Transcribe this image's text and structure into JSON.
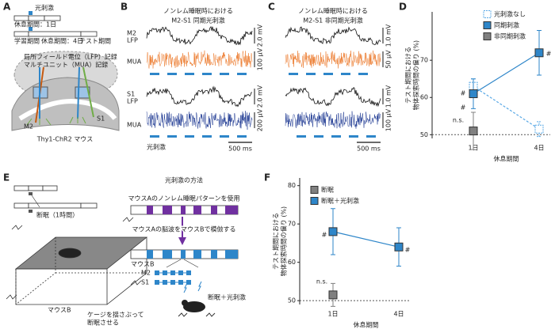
{
  "panel_labels": [
    "A",
    "B",
    "C",
    "D",
    "E",
    "F"
  ],
  "panel_a": {
    "stim": "光刺激",
    "rest_1day": "休息期間：1日",
    "learning": "学習期間",
    "rest_4day": "休息期間：4日",
    "test": "テスト期間",
    "lfp_record": "局所フィールド電位（LFP）記録",
    "mua_record": "マルチユニット（MUA）記録",
    "m2": "M2",
    "s1": "S1",
    "mouse": "Thy1-ChR2 マウス"
  },
  "panel_b": {
    "title": [
      "ノンレム睡眠時における",
      "M2-S1 同期光刺激"
    ],
    "channels": [
      "M2",
      "LFP",
      "MUA",
      "S1",
      "LFP",
      "MUA"
    ],
    "scales": [
      "2.0 mV",
      "100 µV",
      "2.0 mV",
      "200 µV"
    ],
    "stim": "光刺激",
    "time_scale": "500 ms"
  },
  "panel_c": {
    "title": [
      "ノンレム睡眠時における",
      "M2-S1 非同期光刺激"
    ],
    "scales": [
      "1.0 mV",
      "50 µV",
      "1.0 mV",
      "100 µV"
    ],
    "time_scale": "500 ms"
  },
  "panel_e": {
    "sleep_dep": "断眠（1時間）",
    "mouse_b": "マウスB",
    "shake": [
      "ケージを揺さぶって",
      "断眠させる"
    ],
    "method_title": "光刺激の方法",
    "use_pattern": "マウスAのノンレム睡眠パターンを使用",
    "mimic": "マウスAの脳波をマウスBで模倣する",
    "mouse_b2": "マウスB",
    "m2": "M2",
    "s1": "S1",
    "dep_stim": "断眠＋光刺激"
  },
  "chart_data": [
    {
      "type": "line",
      "categories": [
        "1日",
        "4日"
      ],
      "x_label": "休息期間",
      "y_label": [
        "テスト期間における",
        "物体探索時間の偏り (%)"
      ],
      "ylim": [
        49,
        83
      ],
      "yticks": [
        50,
        60,
        70
      ],
      "hline": 50,
      "series": [
        {
          "name": "光刺激なし",
          "color": "#5aa9e6",
          "style": "dashed",
          "values": [
            63,
            51.5
          ],
          "errors": [
            2,
            2
          ]
        },
        {
          "name": "同期刺激",
          "color": "#2e86c9",
          "style": "solid",
          "values": [
            61,
            72
          ],
          "errors": [
            4,
            6
          ]
        },
        {
          "name": "非同期刺激",
          "color": "#808080",
          "style": "solid",
          "values": [
            51,
            null
          ],
          "errors": [
            5,
            null
          ]
        }
      ],
      "annotations": [
        "#",
        "#",
        "#",
        "n.s."
      ]
    },
    {
      "type": "line",
      "categories": [
        "1日",
        "4日"
      ],
      "x_label": "休息期間",
      "y_label": [
        "テスト期間における",
        "物体探索時間の偏り (%)"
      ],
      "ylim": [
        49,
        82
      ],
      "yticks": [
        50,
        60,
        70,
        80
      ],
      "hline": 50,
      "series": [
        {
          "name": "断眠",
          "color": "#808080",
          "style": "solid",
          "values": [
            51.5,
            null
          ],
          "errors": [
            3,
            null
          ]
        },
        {
          "name": "断眠＋光刺激",
          "color": "#2e86c9",
          "style": "solid",
          "values": [
            68,
            64
          ],
          "errors": [
            6,
            5
          ]
        }
      ],
      "annotations": [
        "#",
        "#",
        "n.s."
      ]
    }
  ]
}
